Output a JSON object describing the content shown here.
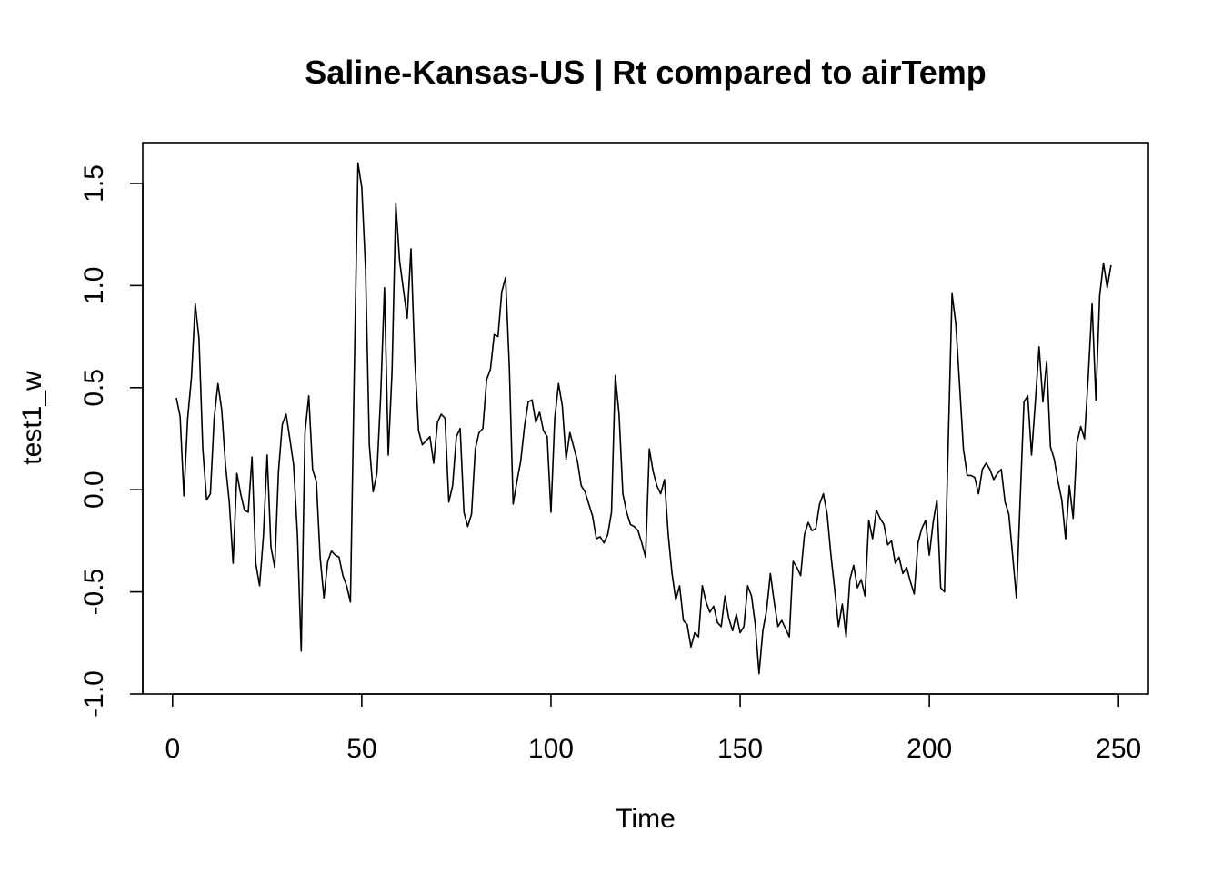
{
  "chart_data": {
    "type": "line",
    "title": "Saline-Kansas-US | Rt compared to airTemp",
    "xlabel": "Time",
    "ylabel": "test1_w",
    "xlim": [
      -7.88,
      257.88
    ],
    "ylim": [
      -1.0,
      1.7
    ],
    "xticks": [
      0,
      50,
      100,
      150,
      200,
      250
    ],
    "xtick_labels": [
      "0",
      "50",
      "100",
      "150",
      "200",
      "250"
    ],
    "yticks": [
      -1.0,
      -0.5,
      0.0,
      0.5,
      1.0,
      1.5
    ],
    "ytick_labels": [
      "-1.0",
      "-0.5",
      "0.0",
      "0.5",
      "1.0",
      "1.5"
    ],
    "grid": false,
    "legend": "none",
    "line_color": "#000000",
    "series": [
      {
        "x": [
          1,
          2,
          3,
          4,
          5,
          6,
          7,
          8,
          9,
          10,
          11,
          12,
          13,
          14,
          15,
          16,
          17,
          18,
          19,
          20,
          21,
          22,
          23,
          24,
          25,
          26,
          27,
          28,
          29,
          30,
          31,
          32,
          33,
          34,
          35,
          36,
          37,
          38,
          39,
          40,
          41,
          42,
          43,
          44,
          45,
          46,
          47,
          48,
          49,
          50,
          51,
          52,
          53,
          54,
          55,
          56,
          57,
          58,
          59,
          60,
          61,
          62,
          63,
          64,
          65,
          66,
          67,
          68,
          69,
          70,
          71,
          72,
          73,
          74,
          75,
          76,
          77,
          78,
          79,
          80,
          81,
          82,
          83,
          84,
          85,
          86,
          87,
          88,
          89,
          90,
          91,
          92,
          93,
          94,
          95,
          96,
          97,
          98,
          99,
          100,
          101,
          102,
          103,
          104,
          105,
          106,
          107,
          108,
          109,
          110,
          111,
          112,
          113,
          114,
          115,
          116,
          117,
          118,
          119,
          120,
          121,
          122,
          123,
          124,
          125,
          126,
          127,
          128,
          129,
          130,
          131,
          132,
          133,
          134,
          135,
          136,
          137,
          138,
          139,
          140,
          141,
          142,
          143,
          144,
          145,
          146,
          147,
          148,
          149,
          150,
          151,
          152,
          153,
          154,
          155,
          156,
          157,
          158,
          159,
          160,
          161,
          162,
          163,
          164,
          165,
          166,
          167,
          168,
          169,
          170,
          171,
          172,
          173,
          174,
          175,
          176,
          177,
          178,
          179,
          180,
          181,
          182,
          183,
          184,
          185,
          186,
          187,
          188,
          189,
          190,
          191,
          192,
          193,
          194,
          195,
          196,
          197,
          198,
          199,
          200,
          201,
          202,
          203,
          204,
          205,
          206,
          207,
          208,
          209,
          210,
          211,
          212,
          213,
          214,
          215,
          216,
          217,
          218,
          219,
          220,
          221,
          222,
          223,
          224,
          225,
          226,
          227,
          228,
          229,
          230,
          231,
          232,
          233,
          234,
          235,
          236,
          237,
          238,
          239,
          240,
          241,
          242,
          243,
          244,
          245,
          246,
          247,
          248
        ],
        "y": [
          0.45,
          0.36,
          -0.03,
          0.35,
          0.55,
          0.91,
          0.74,
          0.2,
          -0.05,
          -0.02,
          0.35,
          0.52,
          0.39,
          0.12,
          -0.06,
          -0.36,
          0.08,
          -0.02,
          -0.1,
          -0.11,
          0.16,
          -0.36,
          -0.47,
          -0.23,
          0.17,
          -0.28,
          -0.38,
          0.09,
          0.32,
          0.37,
          0.25,
          0.12,
          -0.22,
          -0.79,
          0.28,
          0.46,
          0.1,
          0.04,
          -0.33,
          -0.53,
          -0.35,
          -0.3,
          -0.32,
          -0.33,
          -0.42,
          -0.47,
          -0.55,
          0.55,
          1.6,
          1.48,
          1.08,
          0.22,
          -0.01,
          0.08,
          0.46,
          0.99,
          0.17,
          0.58,
          1.4,
          1.12,
          0.98,
          0.84,
          1.18,
          0.64,
          0.29,
          0.22,
          0.24,
          0.26,
          0.13,
          0.33,
          0.37,
          0.35,
          -0.06,
          0.02,
          0.26,
          0.3,
          -0.11,
          -0.18,
          -0.12,
          0.2,
          0.28,
          0.3,
          0.54,
          0.59,
          0.76,
          0.75,
          0.97,
          1.04,
          0.6,
          -0.07,
          0.04,
          0.14,
          0.31,
          0.43,
          0.44,
          0.33,
          0.38,
          0.29,
          0.26,
          -0.11,
          0.35,
          0.52,
          0.41,
          0.15,
          0.28,
          0.21,
          0.14,
          0.02,
          -0.01,
          -0.07,
          -0.13,
          -0.24,
          -0.23,
          -0.26,
          -0.22,
          -0.11,
          0.56,
          0.37,
          -0.02,
          -0.11,
          -0.17,
          -0.18,
          -0.2,
          -0.26,
          -0.33,
          0.2,
          0.09,
          0.02,
          -0.02,
          0.05,
          -0.22,
          -0.41,
          -0.54,
          -0.47,
          -0.64,
          -0.66,
          -0.77,
          -0.7,
          -0.72,
          -0.47,
          -0.55,
          -0.6,
          -0.57,
          -0.65,
          -0.67,
          -0.52,
          -0.63,
          -0.69,
          -0.61,
          -0.7,
          -0.67,
          -0.47,
          -0.52,
          -0.66,
          -0.9,
          -0.69,
          -0.59,
          -0.41,
          -0.55,
          -0.67,
          -0.64,
          -0.68,
          -0.72,
          -0.35,
          -0.38,
          -0.42,
          -0.22,
          -0.16,
          -0.2,
          -0.19,
          -0.07,
          -0.02,
          -0.12,
          -0.32,
          -0.49,
          -0.67,
          -0.56,
          -0.72,
          -0.44,
          -0.37,
          -0.48,
          -0.44,
          -0.52,
          -0.15,
          -0.24,
          -0.1,
          -0.14,
          -0.17,
          -0.27,
          -0.25,
          -0.36,
          -0.33,
          -0.41,
          -0.38,
          -0.45,
          -0.51,
          -0.26,
          -0.19,
          -0.15,
          -0.32,
          -0.16,
          -0.05,
          -0.48,
          -0.5,
          0.24,
          0.96,
          0.81,
          0.51,
          0.2,
          0.07,
          0.07,
          0.06,
          -0.02,
          0.1,
          0.13,
          0.1,
          0.05,
          0.08,
          0.1,
          -0.06,
          -0.12,
          -0.32,
          -0.53,
          -0.05,
          0.43,
          0.46,
          0.17,
          0.43,
          0.7,
          0.43,
          0.63,
          0.21,
          0.15,
          0.04,
          -0.05,
          -0.24,
          0.02,
          -0.14,
          0.23,
          0.31,
          0.25,
          0.56,
          0.91,
          0.44,
          0.95,
          1.11,
          0.99,
          1.1
        ]
      }
    ]
  }
}
